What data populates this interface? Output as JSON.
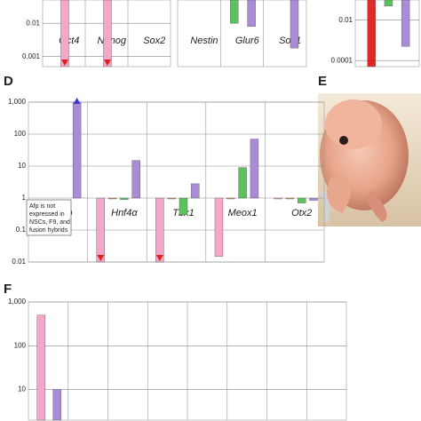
{
  "chart_data": [
    {
      "type": "bar",
      "log": true,
      "grid": true,
      "categories": [
        "Oct4",
        "Nanog",
        "Sox2"
      ],
      "series": [
        {
          "color": "#f4a7c8",
          "values": [
            0.0005,
            0.0005,
            null
          ]
        }
      ],
      "ylim": [
        0.0005,
        0.05
      ],
      "yticks": [
        0.01,
        0.001
      ]
    },
    {
      "type": "bar",
      "log": true,
      "grid": true,
      "categories": [
        "Nestin",
        "Glur6",
        "Sox1"
      ],
      "series": [
        {
          "color": "#5cc35c",
          "values": [
            null,
            0.01,
            null
          ]
        },
        {
          "color": "#a98bd6",
          "values": [
            null,
            0.008,
            0.0018
          ]
        }
      ],
      "ylim": [
        0.0005,
        0.05
      ],
      "yticks": []
    },
    {
      "type": "bar",
      "log": true,
      "grid": true,
      "categories": [
        null
      ],
      "series": [
        {
          "color": "#e02a2a",
          "values": [
            5e-05
          ]
        },
        {
          "color": "#5cc35c",
          "values": [
            0.05
          ]
        },
        {
          "color": "#a98bd6",
          "values": [
            0.0005
          ]
        }
      ],
      "ylim": [
        5e-05,
        0.1
      ],
      "yticks": [
        0.01,
        0.0001
      ]
    },
    {
      "type": "bar",
      "log": true,
      "grid": true,
      "panel": "D",
      "categories": [
        "Afp",
        "Hnf4α",
        "Tbx1",
        "Meox1",
        "Otx2"
      ],
      "series": [
        {
          "color": "#f4a7c8",
          "values": [
            null,
            0.01,
            0.01,
            0.015,
            1
          ]
        },
        {
          "color": "#d9a066",
          "values": [
            null,
            1,
            1,
            1,
            1
          ]
        },
        {
          "color": "#5cc35c",
          "values": [
            null,
            0.9,
            0.3,
            9,
            0.7
          ]
        },
        {
          "color": "#a98bd6",
          "values": [
            1000,
            15,
            2.8,
            70,
            0.85
          ]
        }
      ],
      "ylim": [
        0.01,
        1000
      ],
      "yticks": [
        {
          "value": 1000,
          "label": "1,000"
        },
        100,
        10,
        1,
        0.1,
        0.01
      ],
      "annotation": [
        "Afp is not",
        "expressed in",
        "NSCs, F9, and",
        "fusion hybrids"
      ]
    },
    {
      "type": "bar",
      "log": true,
      "grid": true,
      "panel": "F",
      "categories": [
        null,
        null,
        null,
        null,
        null,
        null,
        null,
        null
      ],
      "series": [
        {
          "color": "#f4a7c8",
          "values": [
            500,
            null,
            null,
            null,
            null,
            null,
            null,
            null
          ]
        },
        {
          "color": "#a98bd6",
          "values": [
            10,
            null,
            null,
            null,
            null,
            null,
            null,
            null
          ]
        }
      ],
      "ylim": [
        2,
        1000
      ],
      "yticks": [
        {
          "value": 1000,
          "label": "1,000"
        },
        100,
        10
      ]
    },
    {
      "panel": "E"
    }
  ]
}
